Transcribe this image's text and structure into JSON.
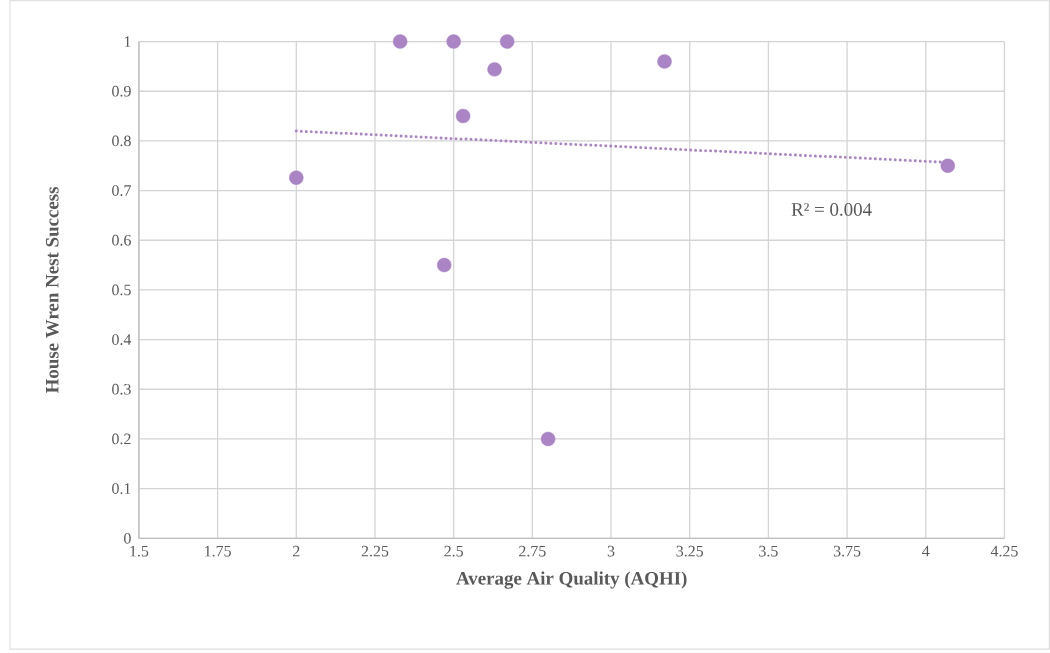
{
  "chart_data": {
    "type": "scatter",
    "xlabel": "Average Air Quality (AQHI)",
    "ylabel": "House Wren Nest Success",
    "xlim": [
      1.5,
      4.25
    ],
    "xticks": [
      1.5,
      1.75,
      2,
      2.25,
      2.5,
      2.75,
      3,
      3.25,
      3.5,
      3.75,
      4,
      4.25
    ],
    "ylim": [
      0,
      1
    ],
    "yticks": [
      0,
      0.1,
      0.2,
      0.3,
      0.4,
      0.5,
      0.6,
      0.7,
      0.8,
      0.9,
      1
    ],
    "grid": true,
    "marker": "circle",
    "series": [
      {
        "color": "#ab84c6",
        "x": [
          2.0,
          2.33,
          2.5,
          2.67,
          2.63,
          2.53,
          2.47,
          2.8,
          3.17,
          4.07
        ],
        "values": [
          0.726,
          1,
          1,
          1,
          0.944,
          0.85,
          0.55,
          0.2,
          0.96,
          0.75
        ]
      },
      {
        "type": "line",
        "color": "#ab84c6",
        "line_style": "dotted",
        "marker": "none",
        "x": [
          2.0,
          4.07
        ],
        "values": [
          0.82,
          0.757
        ]
      }
    ],
    "annotations": [
      "R² = 0.004"
    ]
  }
}
